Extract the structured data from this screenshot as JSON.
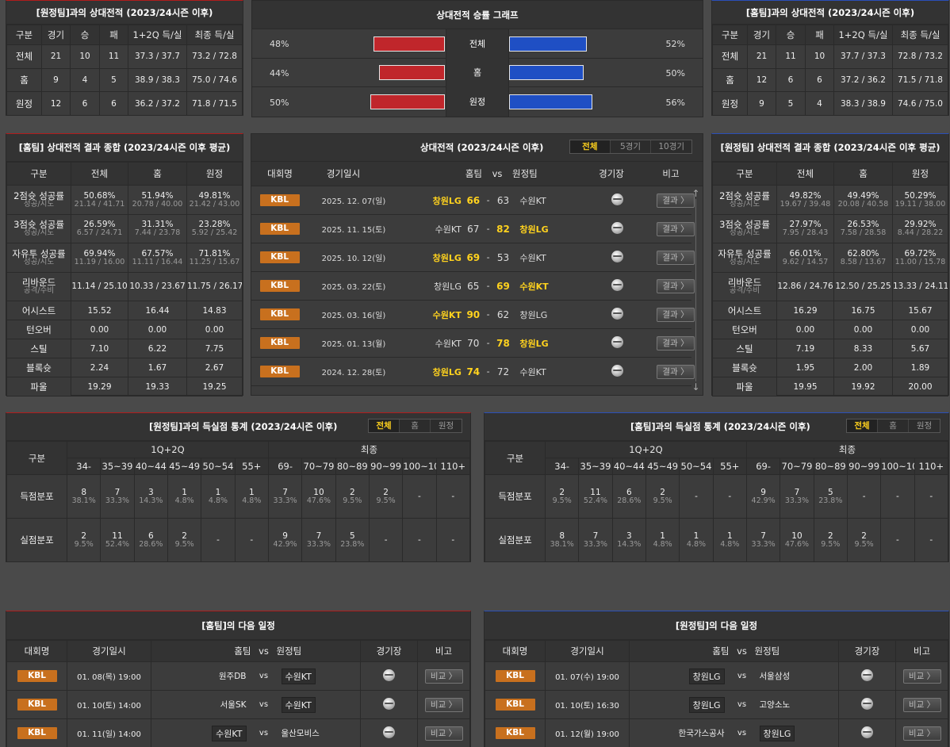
{
  "away_h2h": {
    "title": "[원정팀]과의 상대전적 (2023/24시즌 이후)",
    "headers": [
      "구분",
      "경기",
      "승",
      "패",
      "1+2Q 득/실",
      "최종 득/실"
    ],
    "rows": [
      [
        "전체",
        "21",
        "10",
        "11",
        "37.3 / 37.7",
        "73.2 / 72.8"
      ],
      [
        "홈",
        "9",
        "4",
        "5",
        "38.9 / 38.3",
        "75.0 / 74.6"
      ],
      [
        "원정",
        "12",
        "6",
        "6",
        "36.2 / 37.2",
        "71.8 / 71.5"
      ]
    ]
  },
  "graph": {
    "title": "상대전적 승률 그래프",
    "rows": [
      {
        "label": "전체",
        "left": "48%",
        "right": "52%",
        "left_val": 48,
        "right_val": 52
      },
      {
        "label": "홈",
        "left": "44%",
        "right": "50%",
        "left_val": 44,
        "right_val": 50
      },
      {
        "label": "원정",
        "left": "50%",
        "right": "56%",
        "left_val": 50,
        "right_val": 56
      }
    ]
  },
  "home_h2h": {
    "title": "[홈팀]과의 상대전적 (2023/24시즌 이후)",
    "headers": [
      "구분",
      "경기",
      "승",
      "패",
      "1+2Q 득/실",
      "최종 득/실"
    ],
    "rows": [
      [
        "전체",
        "21",
        "11",
        "10",
        "37.7 / 37.3",
        "72.8 / 73.2"
      ],
      [
        "홈",
        "12",
        "6",
        "6",
        "37.2 / 36.2",
        "71.5 / 71.8"
      ],
      [
        "원정",
        "9",
        "5",
        "4",
        "38.3 / 38.9",
        "74.6 / 75.0"
      ]
    ]
  },
  "home_summary": {
    "title": "[홈팀] 상대전적 결과 종합 (2023/24시즌 이후 평균)",
    "headers": [
      "구분",
      "전체",
      "홈",
      "원정"
    ],
    "rows": [
      {
        "label": "2점슛 성공률",
        "sub": "성공/시도",
        "vals": [
          [
            "50.68%",
            "21.14 / 41.71"
          ],
          [
            "51.94%",
            "20.78 / 40.00"
          ],
          [
            "49.81%",
            "21.42 / 43.00"
          ]
        ]
      },
      {
        "label": "3점슛 성공률",
        "sub": "성공/시도",
        "vals": [
          [
            "26.59%",
            "6.57 / 24.71"
          ],
          [
            "31.31%",
            "7.44 / 23.78"
          ],
          [
            "23.28%",
            "5.92 / 25.42"
          ]
        ]
      },
      {
        "label": "자유투 성공률",
        "sub": "성공/시도",
        "vals": [
          [
            "69.94%",
            "11.19 / 16.00"
          ],
          [
            "67.57%",
            "11.11 / 16.44"
          ],
          [
            "71.81%",
            "11.25 / 15.67"
          ]
        ]
      },
      {
        "label": "리바운드",
        "sub": "공격/수비",
        "vals": [
          [
            "11.14 / 25.10",
            ""
          ],
          [
            "10.33 / 23.67",
            ""
          ],
          [
            "11.75 / 26.17",
            ""
          ]
        ]
      },
      {
        "label": "어시스트",
        "sub": "",
        "vals": [
          [
            "15.52",
            ""
          ],
          [
            "16.44",
            ""
          ],
          [
            "14.83",
            ""
          ]
        ]
      },
      {
        "label": "턴오버",
        "sub": "",
        "vals": [
          [
            "0.00",
            ""
          ],
          [
            "0.00",
            ""
          ],
          [
            "0.00",
            ""
          ]
        ]
      },
      {
        "label": "스틸",
        "sub": "",
        "vals": [
          [
            "7.10",
            ""
          ],
          [
            "6.22",
            ""
          ],
          [
            "7.75",
            ""
          ]
        ]
      },
      {
        "label": "블록슛",
        "sub": "",
        "vals": [
          [
            "2.24",
            ""
          ],
          [
            "1.67",
            ""
          ],
          [
            "2.67",
            ""
          ]
        ]
      },
      {
        "label": "파울",
        "sub": "",
        "vals": [
          [
            "19.29",
            ""
          ],
          [
            "19.33",
            ""
          ],
          [
            "19.25",
            ""
          ]
        ]
      }
    ]
  },
  "away_summary": {
    "title": "[원정팀] 상대전적 결과 종합 (2023/24시즌 이후 평균)",
    "headers": [
      "구분",
      "전체",
      "홈",
      "원정"
    ],
    "rows": [
      {
        "label": "2점슛 성공률",
        "sub": "성공/시도",
        "vals": [
          [
            "49.82%",
            "19.67 / 39.48"
          ],
          [
            "49.49%",
            "20.08 / 40.58"
          ],
          [
            "50.29%",
            "19.11 / 38.00"
          ]
        ]
      },
      {
        "label": "3점슛 성공률",
        "sub": "성공/시도",
        "vals": [
          [
            "27.97%",
            "7.95 / 28.43"
          ],
          [
            "26.53%",
            "7.58 / 28.58"
          ],
          [
            "29.92%",
            "8.44 / 28.22"
          ]
        ]
      },
      {
        "label": "자유투 성공률",
        "sub": "성공/시도",
        "vals": [
          [
            "66.01%",
            "9.62 / 14.57"
          ],
          [
            "62.80%",
            "8.58 / 13.67"
          ],
          [
            "69.72%",
            "11.00 / 15.78"
          ]
        ]
      },
      {
        "label": "리바운드",
        "sub": "공격/수비",
        "vals": [
          [
            "12.86 / 24.76",
            ""
          ],
          [
            "12.50 / 25.25",
            ""
          ],
          [
            "13.33 / 24.11",
            ""
          ]
        ]
      },
      {
        "label": "어시스트",
        "sub": "",
        "vals": [
          [
            "16.29",
            ""
          ],
          [
            "16.75",
            ""
          ],
          [
            "15.67",
            ""
          ]
        ]
      },
      {
        "label": "턴오버",
        "sub": "",
        "vals": [
          [
            "0.00",
            ""
          ],
          [
            "0.00",
            ""
          ],
          [
            "0.00",
            ""
          ]
        ]
      },
      {
        "label": "스틸",
        "sub": "",
        "vals": [
          [
            "7.19",
            ""
          ],
          [
            "8.33",
            ""
          ],
          [
            "5.67",
            ""
          ]
        ]
      },
      {
        "label": "블록슛",
        "sub": "",
        "vals": [
          [
            "1.95",
            ""
          ],
          [
            "2.00",
            ""
          ],
          [
            "1.89",
            ""
          ]
        ]
      },
      {
        "label": "파울",
        "sub": "",
        "vals": [
          [
            "19.95",
            ""
          ],
          [
            "19.92",
            ""
          ],
          [
            "20.00",
            ""
          ]
        ]
      }
    ]
  },
  "matches": {
    "title": "상대전적 (2023/24시즌 이후)",
    "tabs": [
      "전체",
      "5경기",
      "10경기"
    ],
    "headers": {
      "league": "대회명",
      "date": "경기일시",
      "home": "홈팀",
      "vs": "vs",
      "away": "원정팀",
      "venue": "경기장",
      "note": "비고"
    },
    "result_label": "결과 〉",
    "rows": [
      {
        "league": "KBL",
        "date": "2025. 12. 07(일)",
        "home": "창원LG",
        "hs": "66",
        "as": "63",
        "away": "수원KT",
        "winner": "home"
      },
      {
        "league": "KBL",
        "date": "2025. 11. 15(토)",
        "home": "수원KT",
        "hs": "67",
        "as": "82",
        "away": "창원LG",
        "winner": "away"
      },
      {
        "league": "KBL",
        "date": "2025. 10. 12(일)",
        "home": "창원LG",
        "hs": "69",
        "as": "53",
        "away": "수원KT",
        "winner": "home"
      },
      {
        "league": "KBL",
        "date": "2025. 03. 22(토)",
        "home": "창원LG",
        "hs": "65",
        "as": "69",
        "away": "수원KT",
        "winner": "away"
      },
      {
        "league": "KBL",
        "date": "2025. 03. 16(일)",
        "home": "수원KT",
        "hs": "90",
        "as": "62",
        "away": "창원LG",
        "winner": "home"
      },
      {
        "league": "KBL",
        "date": "2025. 01. 13(월)",
        "home": "수원KT",
        "hs": "70",
        "as": "78",
        "away": "창원LG",
        "winner": "away"
      },
      {
        "league": "KBL",
        "date": "2024. 12. 28(토)",
        "home": "창원LG",
        "hs": "74",
        "as": "72",
        "away": "수원KT",
        "winner": "home"
      }
    ]
  },
  "away_points": {
    "title": "[원정팀]과의 득실점 통계 (2023/24시즌 이후)",
    "tabs": [
      "전체",
      "홈",
      "원정"
    ],
    "label_col": "구분",
    "group1": "1Q+2Q",
    "group2": "최종",
    "cols1": [
      "34-",
      "35~39",
      "40~44",
      "45~49",
      "50~54",
      "55+"
    ],
    "cols2": [
      "69-",
      "70~79",
      "80~89",
      "90~99",
      "100~109",
      "110+"
    ],
    "rows": [
      {
        "label": "득점분포",
        "cells": [
          [
            "8",
            "38.1%"
          ],
          [
            "7",
            "33.3%"
          ],
          [
            "3",
            "14.3%"
          ],
          [
            "1",
            "4.8%"
          ],
          [
            "1",
            "4.8%"
          ],
          [
            "1",
            "4.8%"
          ],
          [
            "7",
            "33.3%"
          ],
          [
            "10",
            "47.6%"
          ],
          [
            "2",
            "9.5%"
          ],
          [
            "2",
            "9.5%"
          ],
          [
            "-",
            ""
          ],
          [
            "-",
            ""
          ]
        ]
      },
      {
        "label": "실점분포",
        "cells": [
          [
            "2",
            "9.5%"
          ],
          [
            "11",
            "52.4%"
          ],
          [
            "6",
            "28.6%"
          ],
          [
            "2",
            "9.5%"
          ],
          [
            "-",
            ""
          ],
          [
            "-",
            ""
          ],
          [
            "9",
            "42.9%"
          ],
          [
            "7",
            "33.3%"
          ],
          [
            "5",
            "23.8%"
          ],
          [
            "-",
            ""
          ],
          [
            "-",
            ""
          ],
          [
            "-",
            ""
          ]
        ]
      }
    ]
  },
  "home_points": {
    "title": "[홈팀]과의 득실점 통계 (2023/24시즌 이후)",
    "tabs": [
      "전체",
      "홈",
      "원정"
    ],
    "label_col": "구분",
    "group1": "1Q+2Q",
    "group2": "최종",
    "cols1": [
      "34-",
      "35~39",
      "40~44",
      "45~49",
      "50~54",
      "55+"
    ],
    "cols2": [
      "69-",
      "70~79",
      "80~89",
      "90~99",
      "100~109",
      "110+"
    ],
    "rows": [
      {
        "label": "득점분포",
        "cells": [
          [
            "2",
            "9.5%"
          ],
          [
            "11",
            "52.4%"
          ],
          [
            "6",
            "28.6%"
          ],
          [
            "2",
            "9.5%"
          ],
          [
            "-",
            ""
          ],
          [
            "-",
            ""
          ],
          [
            "9",
            "42.9%"
          ],
          [
            "7",
            "33.3%"
          ],
          [
            "5",
            "23.8%"
          ],
          [
            "-",
            ""
          ],
          [
            "-",
            ""
          ],
          [
            "-",
            ""
          ]
        ]
      },
      {
        "label": "실점분포",
        "cells": [
          [
            "8",
            "38.1%"
          ],
          [
            "7",
            "33.3%"
          ],
          [
            "3",
            "14.3%"
          ],
          [
            "1",
            "4.8%"
          ],
          [
            "1",
            "4.8%"
          ],
          [
            "1",
            "4.8%"
          ],
          [
            "7",
            "33.3%"
          ],
          [
            "10",
            "47.6%"
          ],
          [
            "2",
            "9.5%"
          ],
          [
            "2",
            "9.5%"
          ],
          [
            "-",
            ""
          ],
          [
            "-",
            ""
          ]
        ]
      }
    ]
  },
  "home_next": {
    "title": "[홈팀]의 다음 일정",
    "headers": {
      "league": "대회명",
      "date": "경기일시",
      "home": "홈팀",
      "vs": "vs",
      "away": "원정팀",
      "venue": "경기장",
      "note": "비고"
    },
    "btn_label": "비교 〉",
    "rows": [
      {
        "league": "KBL",
        "date": "01. 08(목) 19:00",
        "home": "원주DB",
        "away": "수원KT",
        "boxed": "away"
      },
      {
        "league": "KBL",
        "date": "01. 10(토) 14:00",
        "home": "서울SK",
        "away": "수원KT",
        "boxed": "away"
      },
      {
        "league": "KBL",
        "date": "01. 11(일) 14:00",
        "home": "수원KT",
        "away": "울산모비스",
        "boxed": "home"
      }
    ]
  },
  "away_next": {
    "title": "[원정팀]의 다음 일정",
    "headers": {
      "league": "대회명",
      "date": "경기일시",
      "home": "홈팀",
      "vs": "vs",
      "away": "원정팀",
      "venue": "경기장",
      "note": "비고"
    },
    "btn_label": "비교 〉",
    "rows": [
      {
        "league": "KBL",
        "date": "01. 07(수) 19:00",
        "home": "창원LG",
        "away": "서울삼성",
        "boxed": "home"
      },
      {
        "league": "KBL",
        "date": "01. 10(토) 16:30",
        "home": "창원LG",
        "away": "고양소노",
        "boxed": "home"
      },
      {
        "league": "KBL",
        "date": "01. 12(월) 19:00",
        "home": "한국가스공사",
        "away": "창원LG",
        "boxed": "away"
      }
    ]
  },
  "colors": {
    "accent_yellow": "#ffd21e",
    "kbl_orange": "#c8701e",
    "bar_red": "#c0262b",
    "bar_blue": "#1f4fc4"
  }
}
